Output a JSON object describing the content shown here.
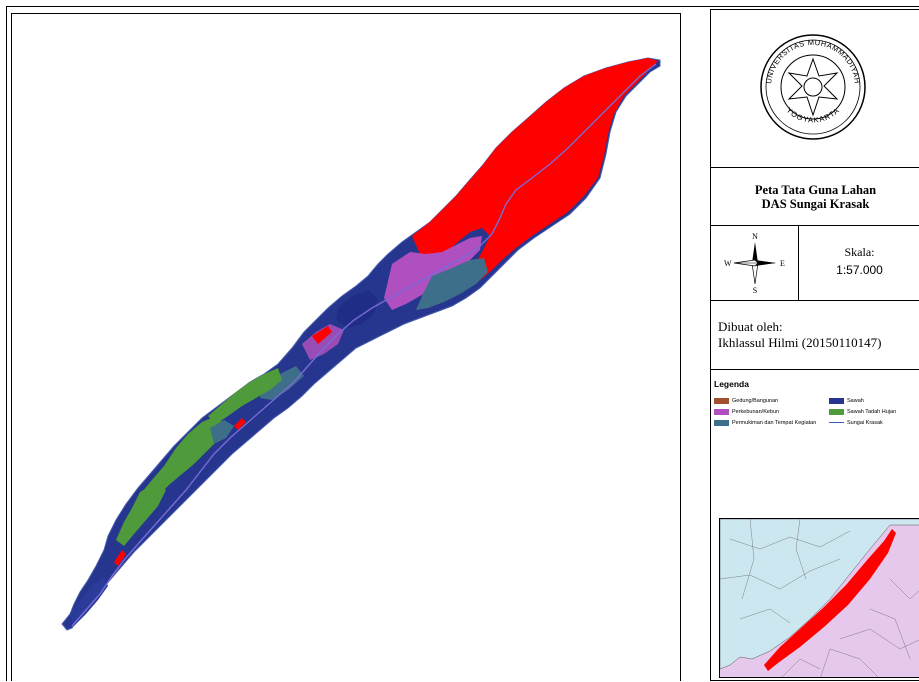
{
  "map": {
    "title_line1": "Peta Tata Guna Lahan",
    "title_line2": "DAS Sungai Krasak",
    "scale_label": "Skala:",
    "scale_value": "1:57.000",
    "compass": {
      "north": "N",
      "south": "S",
      "east": "E",
      "west": "W"
    },
    "author_label": "Dibuat oleh:",
    "author_name": "Ikhlassul Hilmi (20150110147)",
    "logo_text_top": "UNIVERSITAS MUHAMMADIYAH",
    "logo_text_bottom": "YOGYAKARTA"
  },
  "legend": {
    "title": "Legenda",
    "items": [
      {
        "label": "Gedung/Bangunan",
        "color": "#a0522d",
        "kind": "fill"
      },
      {
        "label": "Perkebunan/Kebun",
        "color": "#b04fc0",
        "kind": "fill"
      },
      {
        "label": "Permukiman dan Tempat Kegiatan",
        "color": "#3d6e8a",
        "kind": "fill"
      },
      {
        "label": "Sawah",
        "color": "#26368f",
        "kind": "fill"
      },
      {
        "label": "Sawah Tadah Hujan",
        "color": "#4f9a3a",
        "kind": "fill"
      },
      {
        "label": "Sungai Krasak",
        "color": "#3b5bbf",
        "kind": "line"
      }
    ]
  },
  "colors": {
    "red_landuse": "#ff0000",
    "inset_north": "#cde7f0",
    "inset_south": "#e6c8ec"
  }
}
